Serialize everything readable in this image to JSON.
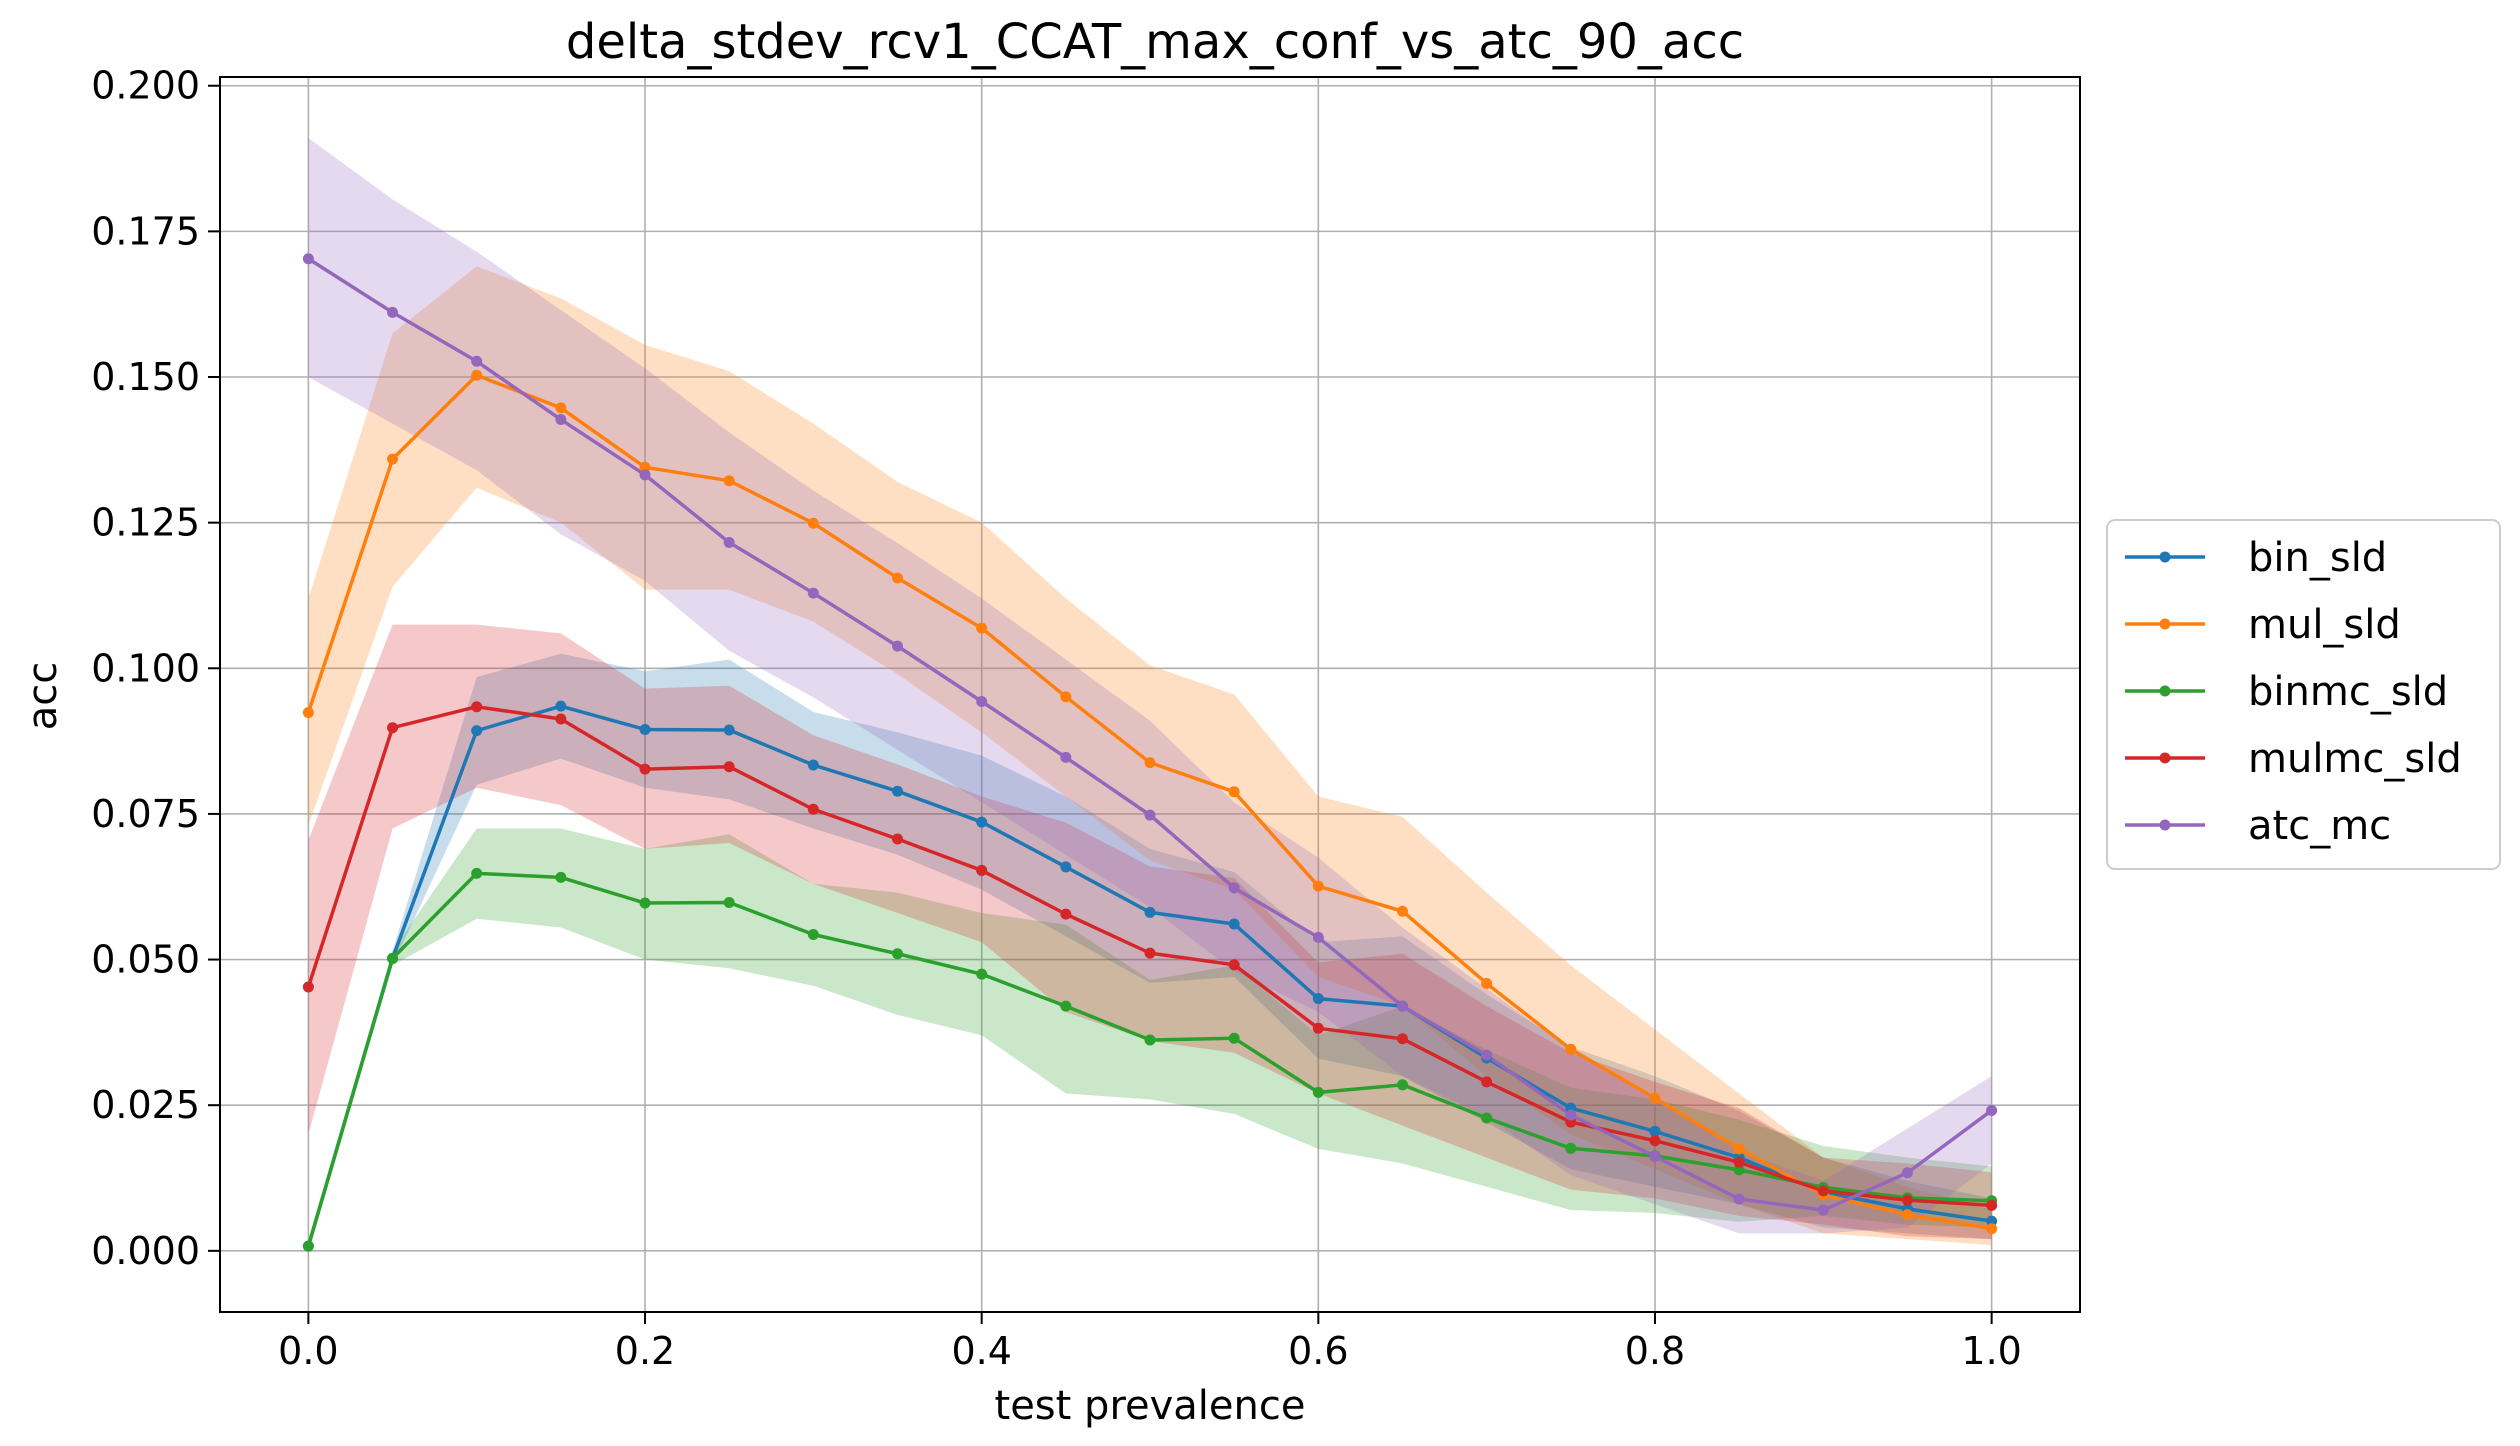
{
  "chart_data": {
    "type": "line",
    "title": "delta_stdev_rcv1_CCAT_max_conf_vs_atc_90_acc",
    "xlabel": "test prevalence",
    "ylabel": "acc",
    "xlim": [
      -0.0525,
      1.0525
    ],
    "ylim": [
      -0.0105,
      0.2015
    ],
    "xticks": [
      "0.0",
      "0.2",
      "0.4",
      "0.6",
      "0.8",
      "1.0"
    ],
    "yticks": [
      "0.000",
      "0.025",
      "0.050",
      "0.075",
      "0.100",
      "0.125",
      "0.150",
      "0.175",
      "0.200"
    ],
    "grid": true,
    "legend_position": "center-right-outside",
    "band_opacity": 0.25,
    "x": [
      0.0,
      0.05,
      0.1,
      0.15,
      0.2,
      0.25,
      0.3,
      0.35,
      0.4,
      0.45,
      0.5,
      0.55,
      0.6,
      0.65,
      0.7,
      0.75,
      0.8,
      0.85,
      0.9,
      0.95,
      1.0
    ],
    "series": [
      {
        "name": "bin_sld",
        "color": "#1f77b4",
        "values": [
          0.0008,
          0.0502,
          0.0893,
          0.0935,
          0.0895,
          0.0894,
          0.0834,
          0.0789,
          0.0736,
          0.0659,
          0.0581,
          0.0561,
          0.0433,
          0.042,
          0.0331,
          0.0245,
          0.0205,
          0.016,
          0.0101,
          0.0072,
          0.0051
        ],
        "lower": [
          0.0005,
          0.049,
          0.08,
          0.0845,
          0.0795,
          0.0775,
          0.0725,
          0.068,
          0.062,
          0.054,
          0.046,
          0.047,
          0.033,
          0.03,
          0.022,
          0.014,
          0.011,
          0.008,
          0.004,
          0.003,
          0.002
        ],
        "upper": [
          0.001,
          0.0515,
          0.0985,
          0.1025,
          0.0995,
          0.1015,
          0.0925,
          0.089,
          0.085,
          0.078,
          0.069,
          0.065,
          0.053,
          0.054,
          0.044,
          0.035,
          0.03,
          0.024,
          0.016,
          0.012,
          0.009
        ]
      },
      {
        "name": "mul_sld",
        "color": "#ff7f0e",
        "values": [
          0.0924,
          0.1359,
          0.1503,
          0.1447,
          0.1345,
          0.1322,
          0.1249,
          0.1155,
          0.1069,
          0.0951,
          0.0838,
          0.0788,
          0.0626,
          0.0583,
          0.0459,
          0.0346,
          0.0262,
          0.0175,
          0.0096,
          0.0062,
          0.0038
        ],
        "lower": [
          0.073,
          0.114,
          0.131,
          0.125,
          0.1135,
          0.1135,
          0.108,
          0.099,
          0.089,
          0.078,
          0.067,
          0.062,
          0.047,
          0.042,
          0.03,
          0.02,
          0.014,
          0.008,
          0.003,
          0.002,
          0.001
        ],
        "upper": [
          0.112,
          0.1575,
          0.169,
          0.1635,
          0.1555,
          0.151,
          0.142,
          0.132,
          0.125,
          0.112,
          0.1005,
          0.0955,
          0.078,
          0.0745,
          0.0615,
          0.049,
          0.038,
          0.027,
          0.016,
          0.011,
          0.007
        ]
      },
      {
        "name": "binmc_sld",
        "color": "#2ca02c",
        "values": [
          0.0008,
          0.0502,
          0.0648,
          0.0641,
          0.0597,
          0.0598,
          0.0543,
          0.051,
          0.0475,
          0.042,
          0.0362,
          0.0365,
          0.0272,
          0.0285,
          0.0228,
          0.0176,
          0.0163,
          0.0139,
          0.0109,
          0.0091,
          0.0086
        ],
        "lower": [
          0.0005,
          0.049,
          0.057,
          0.0555,
          0.05,
          0.0485,
          0.0455,
          0.0405,
          0.037,
          0.027,
          0.026,
          0.0235,
          0.0175,
          0.015,
          0.011,
          0.007,
          0.0065,
          0.005,
          0.006,
          0.0045,
          0.004
        ],
        "upper": [
          0.001,
          0.0515,
          0.0725,
          0.0725,
          0.069,
          0.0715,
          0.063,
          0.0615,
          0.058,
          0.056,
          0.0465,
          0.049,
          0.037,
          0.042,
          0.0345,
          0.028,
          0.026,
          0.0225,
          0.018,
          0.016,
          0.0145
        ]
      },
      {
        "name": "mulmc_sld",
        "color": "#d62728",
        "values": [
          0.0453,
          0.0898,
          0.0934,
          0.0913,
          0.0827,
          0.0831,
          0.0758,
          0.0707,
          0.0653,
          0.0578,
          0.0511,
          0.0491,
          0.0382,
          0.0364,
          0.029,
          0.0221,
          0.0189,
          0.0152,
          0.0103,
          0.0087,
          0.0078
        ],
        "lower": [
          0.02,
          0.0725,
          0.0795,
          0.0765,
          0.069,
          0.07,
          0.063,
          0.058,
          0.053,
          0.041,
          0.036,
          0.034,
          0.027,
          0.0215,
          0.016,
          0.0105,
          0.009,
          0.006,
          0.0045,
          0.0025,
          0.002
        ],
        "upper": [
          0.0705,
          0.1075,
          0.1075,
          0.106,
          0.0965,
          0.097,
          0.0885,
          0.0835,
          0.078,
          0.0735,
          0.066,
          0.064,
          0.0495,
          0.051,
          0.042,
          0.034,
          0.029,
          0.0245,
          0.016,
          0.015,
          0.0135
        ]
      },
      {
        "name": "atc_mc",
        "color": "#9467bd",
        "values": [
          0.1703,
          0.1611,
          0.1527,
          0.1427,
          0.1332,
          0.1216,
          0.1129,
          0.1038,
          0.0943,
          0.0847,
          0.0748,
          0.0623,
          0.0538,
          0.042,
          0.0336,
          0.0233,
          0.0162,
          0.0089,
          0.007,
          0.0134,
          0.0241
        ],
        "lower": [
          0.15,
          0.142,
          0.134,
          0.123,
          0.115,
          0.103,
          0.095,
          0.086,
          0.077,
          0.068,
          0.059,
          0.048,
          0.041,
          0.03,
          0.023,
          0.013,
          0.008,
          0.003,
          0.003,
          0.004,
          0.015
        ],
        "upper": [
          0.191,
          0.1805,
          0.1715,
          0.1615,
          0.1515,
          0.1405,
          0.1305,
          0.1215,
          0.112,
          0.1015,
          0.091,
          0.077,
          0.0675,
          0.0555,
          0.045,
          0.0345,
          0.0265,
          0.017,
          0.012,
          0.021,
          0.03
        ]
      }
    ]
  }
}
